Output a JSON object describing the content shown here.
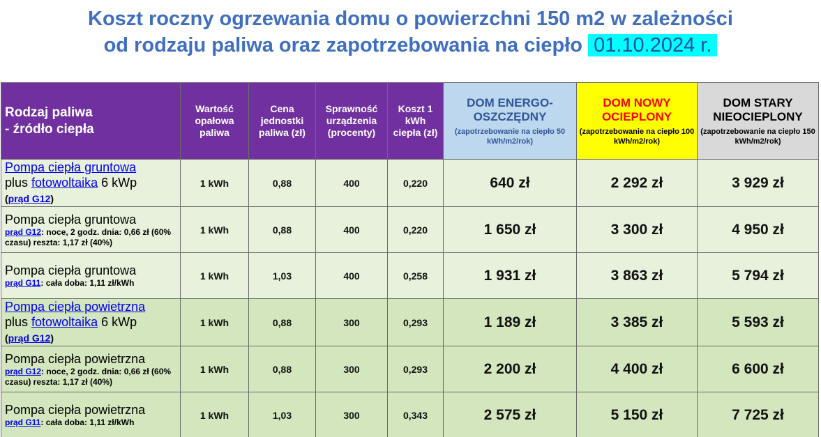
{
  "title": {
    "line1": "Koszt roczny ogrzewania domu o powierzchni 150 m2 w zależności",
    "line2": "od rodzaju paliwa oraz zapotrzebowania na ciepło",
    "date": "01.10.2024 r."
  },
  "headers": {
    "fuel": [
      "Rodzaj paliwa",
      "- źródło ciepła"
    ],
    "value": "Wartość opałowa paliwa",
    "price": "Cena jednostki paliwa (zł)",
    "efficiency": "Sprawność urządzenia (procenty)",
    "kwh_cost": "Koszt 1 kWh ciepła (zł)",
    "energo": {
      "title": "DOM ENERGO-OSZCZĘDNY",
      "note": "(zapotrzebowanie na ciepło 50 kWh/m2/rok)"
    },
    "nowy": {
      "title": "DOM NOWY OCIEPLONY",
      "note": "(zapotrzebowanie na ciepło 100 kWh/m2/rok)"
    },
    "stary": {
      "title": "DOM STARY NIEOCIEPLONY",
      "note": "(zapotrzebowanie na ciepło 150 kWh/m2/rok)"
    }
  },
  "rows": [
    {
      "fuel_link": "Pompa ciepła gruntowa",
      "plus": "plus",
      "pv_link": "fotowoltaika",
      "pv_power": "6 kWp",
      "tariff_link": "prąd G12",
      "value": "1 kWh",
      "price": "0,88",
      "efficiency": "400",
      "kwh_cost": "0,220",
      "energo": "640 zł",
      "nowy": "2 292 zł",
      "stary": "3 929 zł"
    },
    {
      "fuel": "Pompa ciepła gruntowa",
      "tariff_link": "prąd G12",
      "tariff_note": ": noce, 2 godz. dnia: 0,66 zł (60% czasu) reszta: 1,17 zł (40%)",
      "value": "1 kWh",
      "price": "0,88",
      "efficiency": "400",
      "kwh_cost": "0,220",
      "energo": "1 650 zł",
      "nowy": "3 300 zł",
      "stary": "4 950 zł"
    },
    {
      "fuel": "Pompa ciepła gruntowa",
      "tariff_link": "prąd G11",
      "tariff_note": ": cała doba: 1,11 zł/kWh",
      "value": "1 kWh",
      "price": "1,03",
      "efficiency": "400",
      "kwh_cost": "0,258",
      "energo": "1 931 zł",
      "nowy": "3 863 zł",
      "stary": "5 794 zł"
    },
    {
      "fuel_link": "Pompa ciepła powietrzna",
      "plus": "plus",
      "pv_link": "fotowoltaika",
      "pv_power": "6 kWp",
      "tariff_link": "prąd G12",
      "value": "1 kWh",
      "price": "0,88",
      "efficiency": "300",
      "kwh_cost": "0,293",
      "energo": "1 189 zł",
      "nowy": "3 385 zł",
      "stary": "5 593 zł"
    },
    {
      "fuel": "Pompa ciepła powietrzna",
      "tariff_link": "prąd G12",
      "tariff_note": ": noce, 2 godz. dnia: 0,66 zł (60% czasu) reszta: 1,17 zł (40%)",
      "value": "1 kWh",
      "price": "0,88",
      "efficiency": "300",
      "kwh_cost": "0,293",
      "energo": "2 200 zł",
      "nowy": "4 400 zł",
      "stary": "6 600 zł"
    },
    {
      "fuel": "Pompa ciepła powietrzna",
      "tariff_link": "prąd G11",
      "tariff_note": ": cała doba: 1,11 zł/kWh",
      "value": "1 kWh",
      "price": "1,03",
      "efficiency": "300",
      "kwh_cost": "0,343",
      "energo": "2 575 zł",
      "nowy": "5 150 zł",
      "stary": "7 725 zł"
    }
  ]
}
